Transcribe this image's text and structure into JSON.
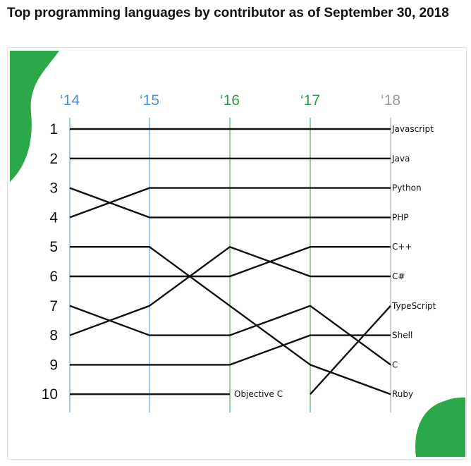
{
  "title": "Top programming languages by contributor as of September 30, 2018",
  "chart_data": {
    "type": "line",
    "subtype": "bump",
    "title": "Top programming languages by contributor as of September 30, 2018",
    "x": [
      "‘14",
      "‘15",
      "‘16",
      "‘17",
      "‘18"
    ],
    "y_ticks": [
      "1",
      "2",
      "3",
      "4",
      "5",
      "6",
      "7",
      "8",
      "9",
      "10"
    ],
    "y_axis": "rank, 1 at top",
    "year_colors": [
      "#4a90d9",
      "#4a90d9",
      "#2e9c45",
      "#2e9c45",
      "#999999"
    ],
    "brand_color": "#2aa84a",
    "series": [
      {
        "name": "Javascript",
        "ranks": [
          1,
          1,
          1,
          1,
          1
        ]
      },
      {
        "name": "Java",
        "ranks": [
          2,
          2,
          2,
          2,
          2
        ]
      },
      {
        "name": "Python",
        "ranks": [
          4,
          3,
          3,
          3,
          3
        ]
      },
      {
        "name": "PHP",
        "ranks": [
          3,
          4,
          4,
          4,
          4
        ]
      },
      {
        "name": "C++",
        "ranks": [
          6,
          6,
          6,
          5,
          5
        ]
      },
      {
        "name": "C#",
        "ranks": [
          8,
          7,
          5,
          6,
          6
        ]
      },
      {
        "name": "TypeScript",
        "ranks": [
          null,
          null,
          null,
          10,
          7
        ]
      },
      {
        "name": "Shell",
        "ranks": [
          9,
          9,
          9,
          8,
          8
        ]
      },
      {
        "name": "C",
        "ranks": [
          7,
          8,
          8,
          7,
          9
        ]
      },
      {
        "name": "Ruby",
        "ranks": [
          5,
          5,
          7,
          9,
          10
        ]
      },
      {
        "name": "Objective C",
        "ranks": [
          10,
          10,
          10,
          null,
          null
        ]
      }
    ]
  }
}
